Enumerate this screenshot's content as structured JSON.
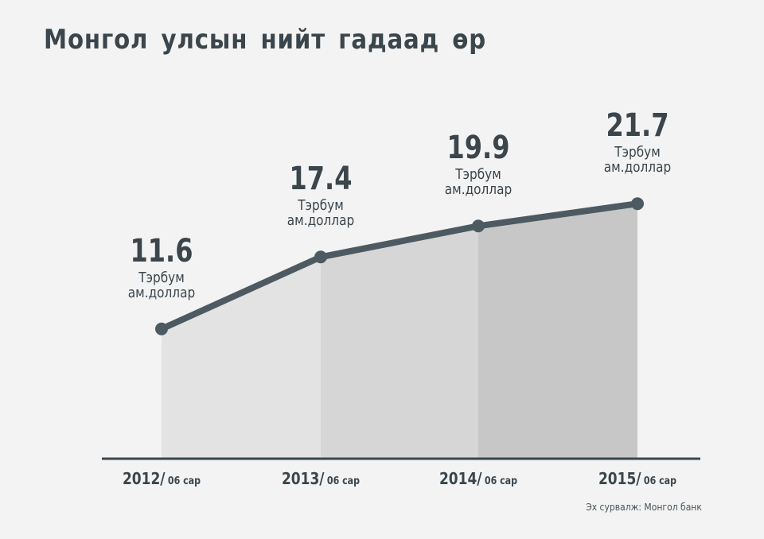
{
  "title": "Монгол улсын нийт гадаад өр",
  "source": "Эх сурвалж: Монгол банк",
  "colors": {
    "line": "#4d5a61",
    "axis": "#3a454c",
    "text": "#3a454c",
    "fills": [
      "#e3e3e3",
      "#d6d6d6",
      "#c7c7c7"
    ],
    "background": "#f3f3f3"
  },
  "chart_data": {
    "type": "area",
    "categories": [
      "2012/",
      "2013/",
      "2014/",
      "2015/"
    ],
    "category_suffix": "06 сар",
    "values": [
      11.6,
      17.4,
      19.9,
      21.7
    ],
    "value_labels": [
      "11.6",
      "17.4",
      "19.9",
      "21.7"
    ],
    "unit_label_line1": "Тэрбум",
    "unit_label_line2": "ам.доллар",
    "grid": false,
    "legend": "none"
  }
}
